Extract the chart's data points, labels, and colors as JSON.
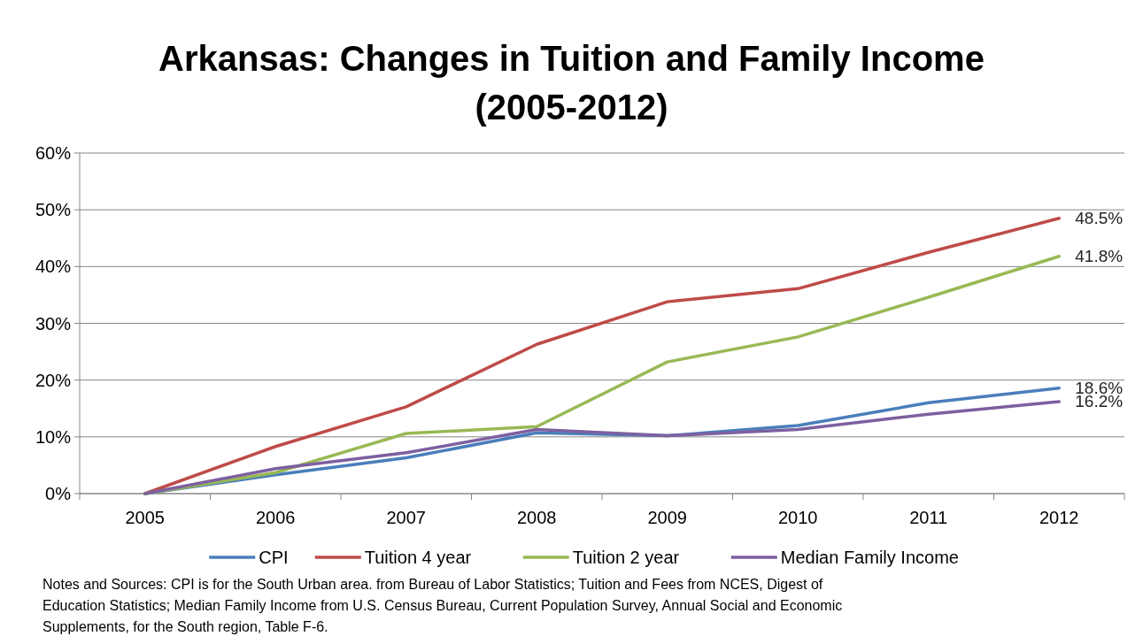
{
  "chart_data": {
    "type": "line",
    "title": "Arkansas: Changes in Tuition and Family Income\n(2005-2012)",
    "categories": [
      "2005",
      "2006",
      "2007",
      "2008",
      "2009",
      "2010",
      "2011",
      "2012"
    ],
    "series": [
      {
        "name": "CPI",
        "color": "#4a7ebb",
        "values": [
          0,
          3.3,
          6.3,
          10.7,
          10.2,
          12.0,
          16.0,
          18.6
        ],
        "value_labels": [
          null,
          null,
          null,
          null,
          null,
          null,
          null,
          "18.6%"
        ]
      },
      {
        "name": "Tuition 4 year",
        "color": "#be4b48",
        "values": [
          0,
          8.3,
          15.3,
          26.3,
          33.8,
          36.1,
          42.5,
          48.5
        ],
        "value_labels": [
          null,
          null,
          null,
          null,
          null,
          null,
          null,
          "48.5%"
        ]
      },
      {
        "name": "Tuition 2 year",
        "color": "#98b954",
        "values": [
          0,
          3.7,
          10.6,
          11.8,
          23.2,
          27.6,
          34.6,
          41.8
        ],
        "value_labels": [
          null,
          null,
          null,
          null,
          null,
          null,
          null,
          "41.8%"
        ]
      },
      {
        "name": "Median Family Income",
        "color": "#7d60a0",
        "values": [
          0,
          4.4,
          7.2,
          11.3,
          10.2,
          11.3,
          14.0,
          16.2
        ],
        "value_labels": [
          null,
          null,
          null,
          null,
          null,
          null,
          null,
          "16.2%"
        ]
      }
    ],
    "ylim": [
      0,
      60
    ],
    "yticks": [
      {
        "value": 0,
        "label": "0%"
      },
      {
        "value": 10,
        "label": "10%"
      },
      {
        "value": 20,
        "label": "20%"
      },
      {
        "value": 30,
        "label": "30%"
      },
      {
        "value": 40,
        "label": "40%"
      },
      {
        "value": 50,
        "label": "50%"
      },
      {
        "value": 60,
        "label": "60%"
      }
    ],
    "grid": "y",
    "legend": "bottom",
    "marker": "none",
    "line_style": "solid",
    "annotations": [
      "Notes and Sources: CPI is for the South Urban area. from Bureau of Labor Statistics; Tuition and Fees  from NCES, Digest of Education Statistics; Median Family Income from U.S. Census Bureau, Current Population Survey, Annual Social and Economic Supplements, for the South region, Table F-6."
    ]
  }
}
